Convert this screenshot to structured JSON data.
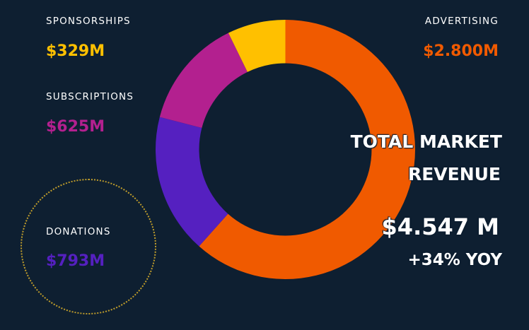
{
  "chart_data": {
    "type": "pie",
    "variant": "donut",
    "title": "TOTAL MARKET REVENUE",
    "unit": "$M",
    "categories": [
      "ADVERTISING",
      "DONATIONS",
      "SUBSCRIPTIONS",
      "SPONSORSHIPS"
    ],
    "values": [
      2800,
      793,
      625,
      329
    ],
    "colors": [
      "#f05a00",
      "#5520c0",
      "#b3208f",
      "#ffc000"
    ],
    "value_labels": [
      "$2.800M",
      "$793M",
      "$625M",
      "$329M"
    ],
    "total_label": "$4.547 M",
    "growth_label": "+34% YOY"
  },
  "summary": {
    "title_line1": "TOTAL MARKET",
    "title_line2": "REVENUE"
  }
}
